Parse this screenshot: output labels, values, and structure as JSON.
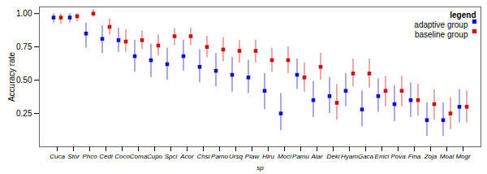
{
  "chart_data": {
    "type": "errorbar",
    "xlabel": "sp",
    "ylabel": "Accuracy rate",
    "categories": [
      "Cuca",
      "Stor",
      "Phco",
      "Cedi",
      "Coco",
      "Coma",
      "Cupo",
      "Spci",
      "Acor",
      "Chsi",
      "Pamo",
      "Ursq",
      "Piaw",
      "Hiru",
      "Moci",
      "Pamu",
      "Alar",
      "Deki",
      "Hyam",
      "Gaca",
      "Emci",
      "Pova",
      "Fina",
      "Zoja",
      "Moal",
      "Mogr"
    ],
    "series": [
      {
        "name": "adaptive group",
        "color": "#1111cc",
        "marker": "square",
        "values": [
          0.97,
          0.97,
          0.85,
          0.81,
          0.8,
          0.68,
          0.65,
          0.62,
          0.68,
          0.6,
          0.57,
          0.54,
          0.52,
          0.42,
          0.25,
          0.54,
          0.35,
          0.38,
          0.42,
          0.28,
          0.38,
          0.32,
          0.35,
          0.2,
          0.2,
          0.3
        ],
        "lower": [
          0.93,
          0.93,
          0.74,
          0.7,
          0.71,
          0.56,
          0.52,
          0.5,
          0.57,
          0.48,
          0.45,
          0.41,
          0.4,
          0.28,
          0.12,
          0.43,
          0.22,
          0.25,
          0.3,
          0.15,
          0.26,
          0.19,
          0.22,
          0.08,
          0.08,
          0.18
        ],
        "upper": [
          1.0,
          1.0,
          0.93,
          0.91,
          0.89,
          0.8,
          0.77,
          0.74,
          0.8,
          0.73,
          0.7,
          0.67,
          0.65,
          0.55,
          0.4,
          0.66,
          0.49,
          0.52,
          0.55,
          0.42,
          0.51,
          0.46,
          0.48,
          0.33,
          0.33,
          0.43
        ]
      },
      {
        "name": "baseline group",
        "color": "#cc1111",
        "marker": "square",
        "values": [
          0.97,
          0.98,
          1.0,
          0.9,
          0.79,
          0.8,
          0.76,
          0.83,
          0.83,
          0.75,
          0.73,
          0.72,
          0.72,
          0.65,
          0.65,
          0.52,
          0.6,
          0.33,
          0.55,
          0.55,
          0.42,
          0.42,
          0.35,
          0.32,
          0.25,
          0.3
        ],
        "lower": [
          0.92,
          0.94,
          0.97,
          0.84,
          0.71,
          0.73,
          0.68,
          0.76,
          0.76,
          0.67,
          0.64,
          0.63,
          0.63,
          0.56,
          0.55,
          0.41,
          0.5,
          0.2,
          0.45,
          0.44,
          0.3,
          0.3,
          0.23,
          0.2,
          0.13,
          0.18
        ],
        "upper": [
          1.0,
          1.0,
          1.03,
          0.96,
          0.88,
          0.87,
          0.84,
          0.89,
          0.89,
          0.83,
          0.82,
          0.8,
          0.8,
          0.74,
          0.75,
          0.63,
          0.7,
          0.47,
          0.66,
          0.66,
          0.53,
          0.53,
          0.47,
          0.43,
          0.37,
          0.42
        ]
      }
    ],
    "legend": "upper right",
    "legend_title": "legend",
    "ylim": [
      0.0,
      1.05
    ],
    "yticks": [
      0.25,
      {
        "value": 0.5,
        "label": "0.50"
      },
      0.75,
      {
        "value": 1.0,
        "label": "1.00"
      }
    ],
    "grid": false
  }
}
